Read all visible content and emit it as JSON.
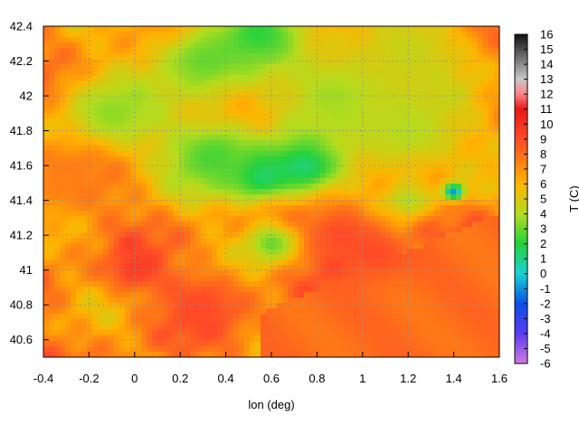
{
  "chart_data": {
    "type": "heatmap",
    "title": "",
    "xlabel": "lon (deg)",
    "ylabel": "",
    "colorbar_label": "T (C)",
    "xlim": [
      -0.4,
      1.6
    ],
    "ylim": [
      40.5,
      42.4
    ],
    "x_ticks": [
      "-0.4",
      "-0.2",
      "0",
      "0.2",
      "0.4",
      "0.6",
      "0.8",
      "1",
      "1.2",
      "1.4",
      "1.6"
    ],
    "y_ticks": [
      "40.6",
      "40.8",
      "41",
      "41.2",
      "41.4",
      "41.6",
      "41.8",
      "42",
      "42.2",
      "42.4"
    ],
    "colorbar_range": [
      -6,
      16
    ],
    "colorbar_ticks": [
      "-6",
      "-5",
      "-4",
      "-3",
      "-2",
      "-1",
      "0",
      "1",
      "2",
      "3",
      "4",
      "5",
      "6",
      "7",
      "8",
      "9",
      "10",
      "11",
      "12",
      "13",
      "14",
      "15",
      "16"
    ],
    "grid": true,
    "contours": true,
    "colormap": [
      {
        "t": -6,
        "color": "#d27be0"
      },
      {
        "t": -4,
        "color": "#5a3cf0"
      },
      {
        "t": -2,
        "color": "#0a50e6"
      },
      {
        "t": 0,
        "color": "#1ad2d2"
      },
      {
        "t": 2,
        "color": "#23d23c"
      },
      {
        "t": 4,
        "color": "#b4dc1e"
      },
      {
        "t": 6,
        "color": "#ffb400"
      },
      {
        "t": 9,
        "color": "#ff4a28"
      },
      {
        "t": 11,
        "color": "#e81818"
      },
      {
        "t": 12,
        "color": "#ff8282"
      },
      {
        "t": 13,
        "color": "#c8c8c8"
      },
      {
        "t": 14,
        "color": "#8c8c8c"
      },
      {
        "t": 16,
        "color": "#101010"
      }
    ],
    "features": [
      {
        "lon": -0.1,
        "lat": 41.9,
        "t": 3.5,
        "r": 0.25
      },
      {
        "lon": 0.3,
        "lat": 42.2,
        "t": 3.0,
        "r": 0.25
      },
      {
        "lon": 0.55,
        "lat": 42.35,
        "t": 2.0,
        "r": 0.2
      },
      {
        "lon": 0.75,
        "lat": 41.6,
        "t": 0.5,
        "r": 0.18
      },
      {
        "lon": 0.55,
        "lat": 41.55,
        "t": 0.5,
        "r": 0.15
      },
      {
        "lon": 0.35,
        "lat": 41.65,
        "t": 2.5,
        "r": 0.25
      },
      {
        "lon": 0.9,
        "lat": 42.0,
        "t": 3.5,
        "r": 0.3
      },
      {
        "lon": 1.2,
        "lat": 41.8,
        "t": 4.0,
        "r": 0.3
      },
      {
        "lon": 1.2,
        "lat": 42.25,
        "t": 4.5,
        "r": 0.3
      },
      {
        "lon": 0.9,
        "lat": 41.2,
        "t": 9.0,
        "r": 0.2
      },
      {
        "lon": 1.05,
        "lat": 41.1,
        "t": 9.0,
        "r": 0.15
      },
      {
        "lon": 0.3,
        "lat": 40.8,
        "t": 9.0,
        "r": 0.2
      },
      {
        "lon": 0.0,
        "lat": 41.0,
        "t": 9.5,
        "r": 0.12
      },
      {
        "lon": -0.3,
        "lat": 41.5,
        "t": 7.5,
        "r": 0.2
      },
      {
        "lon": 1.4,
        "lat": 41.45,
        "t": 0.0,
        "r": 0.05
      },
      {
        "lon": 1.4,
        "lat": 41.45,
        "t": -1.0,
        "r": 0.025
      },
      {
        "lon": 0.6,
        "lat": 41.15,
        "t": 3.0,
        "r": 0.12
      },
      {
        "lon": 1.2,
        "lat": 41.4,
        "t": 4.0,
        "r": 0.1
      }
    ]
  }
}
